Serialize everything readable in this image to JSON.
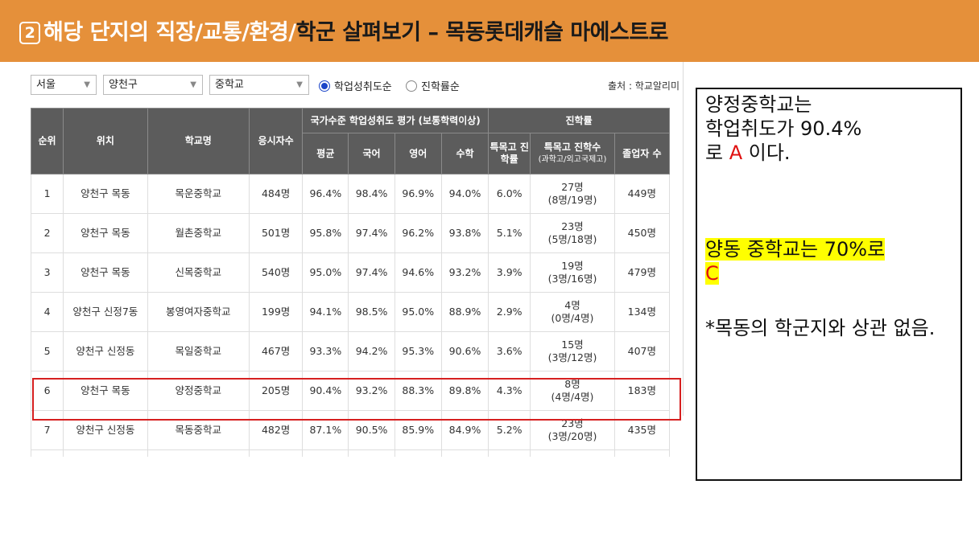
{
  "banner": {
    "num": "2",
    "title_light": "해당 단지의 직장/교통/환경/",
    "title_dark": "학군 살펴보기 – 목동롯데캐슬 마에스트로"
  },
  "filters": {
    "region": "서울",
    "district": "양천구",
    "level": "중학교",
    "radio_1": "학업성취도순",
    "radio_2": "진학률순",
    "source": "출처 : 학교알리미"
  },
  "table": {
    "headers": {
      "rank": "순위",
      "location": "위치",
      "school": "학교명",
      "examinees": "응시자수",
      "group_achievement": "국가수준 학업성취도 평가 (보통학력이상)",
      "group_advance": "진학률",
      "avg": "평균",
      "korean": "국어",
      "english": "영어",
      "math": "수학",
      "special_rate": "특목고 진학률",
      "special_count": "특목고 진학수",
      "special_count_sub": "(과학고/외고국제고)",
      "graduates": "졸업자 수"
    },
    "rows": [
      {
        "rank": "1",
        "location": "양천구 목동",
        "school": "목운중학교",
        "examinees": "484명",
        "avg": "96.4%",
        "korean": "98.4%",
        "english": "96.9%",
        "math": "94.0%",
        "special_rate": "6.0%",
        "count_main": "27명",
        "count_sub": "(8명/19명)",
        "graduates": "449명"
      },
      {
        "rank": "2",
        "location": "양천구 목동",
        "school": "월촌중학교",
        "examinees": "501명",
        "avg": "95.8%",
        "korean": "97.4%",
        "english": "96.2%",
        "math": "93.8%",
        "special_rate": "5.1%",
        "count_main": "23명",
        "count_sub": "(5명/18명)",
        "graduates": "450명"
      },
      {
        "rank": "3",
        "location": "양천구 목동",
        "school": "신목중학교",
        "examinees": "540명",
        "avg": "95.0%",
        "korean": "97.4%",
        "english": "94.6%",
        "math": "93.2%",
        "special_rate": "3.9%",
        "count_main": "19명",
        "count_sub": "(3명/16명)",
        "graduates": "479명"
      },
      {
        "rank": "4",
        "location": "양천구 신정7동",
        "school": "봉영여자중학교",
        "examinees": "199명",
        "avg": "94.1%",
        "korean": "98.5%",
        "english": "95.0%",
        "math": "88.9%",
        "special_rate": "2.9%",
        "count_main": "4명",
        "count_sub": "(0명/4명)",
        "graduates": "134명"
      },
      {
        "rank": "5",
        "location": "양천구 신정동",
        "school": "목일중학교",
        "examinees": "467명",
        "avg": "93.3%",
        "korean": "94.2%",
        "english": "95.3%",
        "math": "90.6%",
        "special_rate": "3.6%",
        "count_main": "15명",
        "count_sub": "(3명/12명)",
        "graduates": "407명"
      },
      {
        "rank": "6",
        "location": "양천구 목동",
        "school": "양정중학교",
        "examinees": "205명",
        "avg": "90.4%",
        "korean": "93.2%",
        "english": "88.3%",
        "math": "89.8%",
        "special_rate": "4.3%",
        "count_main": "8명",
        "count_sub": "(4명/4명)",
        "graduates": "183명"
      },
      {
        "rank": "7",
        "location": "양천구 신정동",
        "school": "목동중학교",
        "examinees": "482명",
        "avg": "87.1%",
        "korean": "90.5%",
        "english": "85.9%",
        "math": "84.9%",
        "special_rate": "5.2%",
        "count_main": "23명",
        "count_sub": "(3명/20명)",
        "graduates": "435명"
      }
    ]
  },
  "note": {
    "line1": "양정중학교는",
    "line2": "학업취도가 90.4%",
    "line3_a": "로 ",
    "line3_grade": "A",
    "line3_b": " 이다.",
    "line4": "양동 중학교는 70%로",
    "line4_grade": "C",
    "line5": "*목동의 학군지와 상관 없음."
  },
  "colors": {
    "banner": "#e5903a",
    "table_header": "#5c5c5c",
    "highlight_border": "#d62020",
    "grade_text": "#e01010",
    "marker": "#ffff00"
  }
}
